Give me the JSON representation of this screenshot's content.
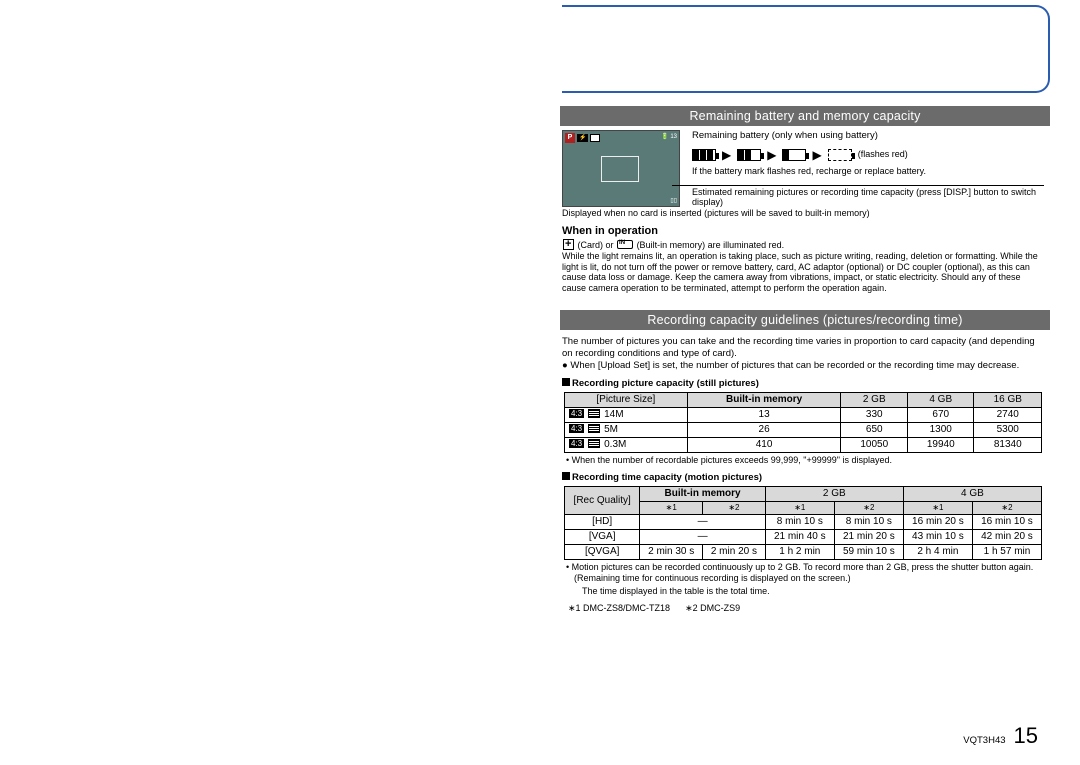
{
  "section1": {
    "title": "Remaining battery and memory capacity"
  },
  "battery": {
    "line": "Remaining battery (only when using battery)",
    "flash": "(flashes red)",
    "note": "If the battery mark flashes red, recharge or replace battery."
  },
  "estimate": {
    "line1": "Estimated remaining pictures or recording time capacity (press [DISP.] button to switch display)",
    "line2": "Displayed when no card is inserted (pictures will be saved to built-in memory)"
  },
  "operation": {
    "head": "When in operation",
    "line1": "(Card) or",
    "line1b": "(Built-in memory) are illuminated red.",
    "body": "While the light remains lit, an operation is taking place, such as picture writing, reading, deletion or formatting. While the light is lit, do not turn off the power or remove battery, card, AC adaptor (optional) or DC coupler (optional), as this can cause data loss or damage. Keep the camera away from vibrations, impact, or static electricity. Should any of these cause camera operation to be terminated, attempt to perform the operation again."
  },
  "section2": {
    "title": "Recording capacity guidelines (pictures/recording time)"
  },
  "intro": {
    "p1": "The number of pictures you can take and the recording time varies in proportion to card capacity (and depending on recording conditions and type of card).",
    "p2": "When [Upload Set] is set, the number of pictures that can be recorded or the recording time may decrease."
  },
  "stills": {
    "head": "Recording picture capacity (still pictures)",
    "cols": [
      "[Picture Size]",
      "Built-in memory",
      "2 GB",
      "4 GB",
      "16 GB"
    ],
    "rows": [
      {
        "aspect": "4:3",
        "size": "14M",
        "vals": [
          "13",
          "330",
          "670",
          "2740"
        ]
      },
      {
        "aspect": "4:3",
        "size": "5M",
        "vals": [
          "26",
          "650",
          "1300",
          "5300"
        ]
      },
      {
        "aspect": "4:3",
        "size": "0.3M",
        "vals": [
          "410",
          "10050",
          "19940",
          "81340"
        ]
      }
    ],
    "note": "When the number of recordable pictures exceeds 99,999, \"+99999\" is displayed."
  },
  "motion": {
    "head": "Recording time capacity (motion pictures)",
    "cols": [
      "[Rec Quality]",
      "Built-in memory",
      "2 GB",
      "4 GB"
    ],
    "sub": [
      "∗1",
      "∗2",
      "∗1",
      "∗2",
      "∗1",
      "∗2"
    ],
    "rows": [
      {
        "q": "[HD]",
        "vals": [
          "—",
          "",
          "8 min 10 s",
          "8 min 10 s",
          "16 min 20 s",
          "16 min 10 s"
        ]
      },
      {
        "q": "[VGA]",
        "vals": [
          "—",
          "",
          "21 min 40 s",
          "21 min 20 s",
          "43 min 10 s",
          "42 min 20 s"
        ]
      },
      {
        "q": "[QVGA]",
        "vals": [
          "2 min 30 s",
          "2 min 20 s",
          "1 h 2 min",
          "59 min 10 s",
          "2 h 4 min",
          "1 h 57 min"
        ]
      }
    ],
    "note1": "Motion pictures can be recorded continuously up to 2 GB. To record more than 2 GB, press the shutter button again. (Remaining time for continuous recording is displayed on the screen.)",
    "note2": "The time displayed in the table is the total time."
  },
  "footnotes": {
    "f1": "∗1 DMC-ZS8/DMC-TZ18",
    "f2": "∗2 DMC-ZS9"
  },
  "footer": {
    "code": "VQT3H43",
    "page": "15"
  },
  "colors": {
    "bar": "#6b6b6b",
    "tab": "#2a5db0",
    "screen": "#5a7a78",
    "th": "#d9d9d9"
  }
}
